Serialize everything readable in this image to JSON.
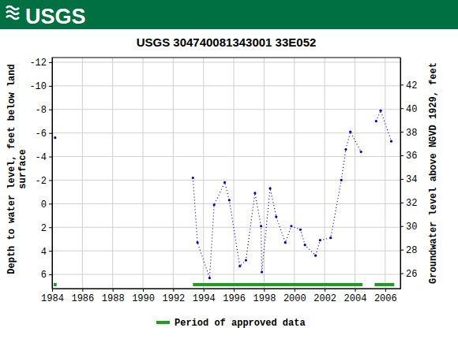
{
  "header": {
    "logo": "USGS"
  },
  "chart_data": {
    "type": "line",
    "title": "USGS 304740081343001 33E052",
    "ylabel": "Depth to water level, feet below land surface",
    "y2label": "Groundwater level above NGVD 1929, feet",
    "x": [
      1984.2,
      1989.0,
      1993.3,
      1993.6,
      1994.4,
      1994.7,
      1995.4,
      1995.7,
      1996.4,
      1996.8,
      1997.4,
      1997.8,
      1997.85,
      1998.4,
      1998.8,
      1999.4,
      1999.8,
      2000.4,
      2000.7,
      2001.4,
      2001.7,
      2002.4,
      2003.1,
      2003.4,
      2003.7,
      2004.4,
      2004.9,
      2005.4,
      2005.7,
      2006.4
    ],
    "series": [
      {
        "color": "#0000cc",
        "marker": "circle",
        "line_style": "dotted",
        "values": [
          -5.6,
          null,
          -2.2,
          3.3,
          6.3,
          0.1,
          -1.8,
          -0.3,
          5.3,
          4.8,
          -0.9,
          1.9,
          5.8,
          -1.3,
          1.1,
          3.3,
          1.9,
          2.2,
          3.5,
          4.4,
          3.1,
          2.9,
          -2.0,
          -4.6,
          -6.1,
          -4.4,
          null,
          -7.0,
          -7.9,
          -5.3
        ]
      }
    ],
    "xlim": [
      1984,
      2007
    ],
    "xticks": [
      1984,
      1986,
      1988,
      1990,
      1992,
      1994,
      1996,
      1998,
      2000,
      2002,
      2004,
      2006
    ],
    "ylim": [
      7.2,
      -12.4
    ],
    "yticks": [
      -12,
      -10,
      -8,
      -6,
      -4,
      -2,
      0,
      2,
      4,
      6
    ],
    "y2lim": [
      24.7,
      44.3
    ],
    "y2ticks": [
      26,
      28,
      30,
      32,
      34,
      36,
      38,
      40,
      42
    ],
    "grid": true,
    "legend": "bottom",
    "approved_periods": {
      "name": "Period of approved data",
      "color": "#1f9d1f",
      "ranges": [
        [
          1984.1,
          1984.3
        ],
        [
          1993.3,
          2004.5
        ],
        [
          2005.3,
          2006.6
        ]
      ]
    }
  }
}
